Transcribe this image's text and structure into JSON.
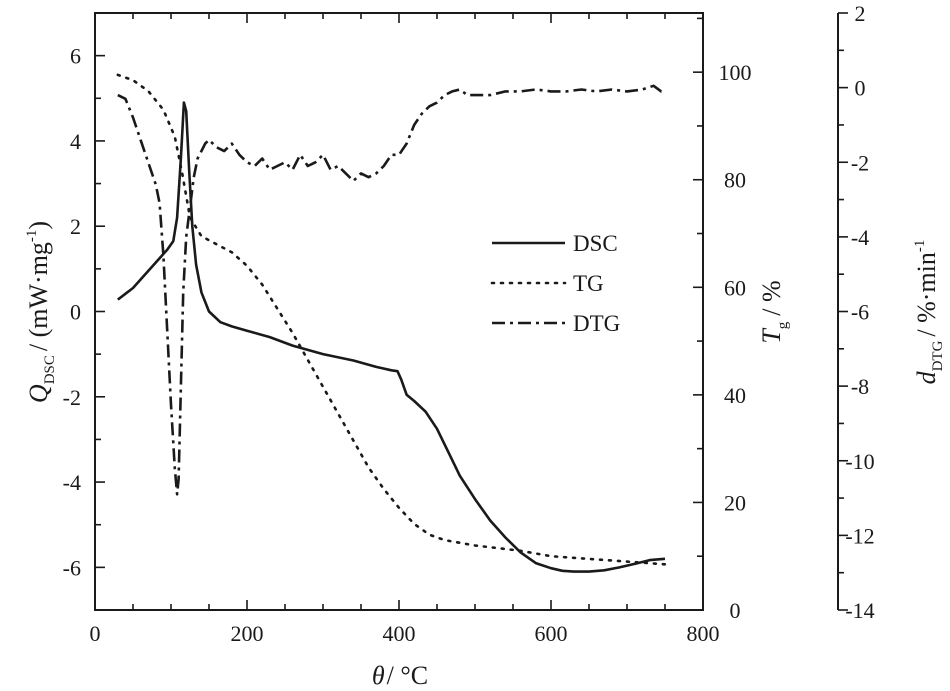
{
  "chart_data": {
    "type": "line",
    "x_axis": {
      "label": "θ",
      "unit": "/ °C",
      "range": [
        0,
        800
      ],
      "ticks": [
        0,
        200,
        400,
        600,
        800
      ]
    },
    "y_axes": {
      "left": {
        "label_main": "Q",
        "label_sub": "DSC",
        "label_unit": "/ (mW·mg",
        "label_sup": "-1",
        "label_close": ")",
        "range": [
          -7,
          7
        ],
        "ticks": [
          6,
          4,
          2,
          0,
          -2,
          -4,
          -6
        ]
      },
      "right1": {
        "label_main": "T",
        "label_sub": "g",
        "label_unit": "/ %",
        "range": [
          0,
          111
        ],
        "ticks": [
          0,
          20,
          40,
          60,
          80,
          100
        ]
      },
      "right2": {
        "label_main": "d",
        "label_sub": "DTG",
        "label_unit": "/ %·min",
        "label_sup": "-1",
        "range": [
          -14,
          2
        ],
        "ticks": [
          2,
          0,
          -2,
          -4,
          -6,
          -8,
          -10,
          -12,
          -14
        ]
      }
    },
    "legend": {
      "position": "center-right",
      "entries": [
        "DSC",
        "TG",
        "DTG"
      ]
    },
    "series": [
      {
        "name": "DSC",
        "axis": "left",
        "dash": "solid",
        "x": [
          30,
          50,
          70,
          85,
          95,
          103,
          108,
          113,
          117,
          120,
          124,
          128,
          133,
          140,
          150,
          165,
          180,
          200,
          230,
          260,
          300,
          340,
          370,
          390,
          398,
          403,
          410,
          420,
          435,
          450,
          465,
          480,
          500,
          520,
          540,
          560,
          580,
          600,
          615,
          630,
          650,
          670,
          690,
          710,
          730,
          750
        ],
        "y": [
          0.28,
          0.55,
          0.95,
          1.25,
          1.45,
          1.65,
          2.2,
          3.6,
          4.9,
          4.7,
          3.3,
          2.0,
          1.1,
          0.45,
          0.0,
          -0.25,
          -0.35,
          -0.45,
          -0.6,
          -0.8,
          -1.0,
          -1.15,
          -1.3,
          -1.38,
          -1.4,
          -1.6,
          -1.95,
          -2.1,
          -2.35,
          -2.75,
          -3.3,
          -3.85,
          -4.4,
          -4.9,
          -5.3,
          -5.65,
          -5.9,
          -6.02,
          -6.08,
          -6.1,
          -6.1,
          -6.07,
          -6.0,
          -5.92,
          -5.83,
          -5.8
        ]
      },
      {
        "name": "TG",
        "axis": "right1",
        "dash": "dotted",
        "x": [
          30,
          50,
          70,
          90,
          105,
          115,
          125,
          140,
          160,
          180,
          200,
          220,
          240,
          260,
          280,
          300,
          320,
          340,
          360,
          380,
          400,
          420,
          440,
          460,
          480,
          500,
          530,
          560,
          600,
          650,
          700,
          750
        ],
        "y": [
          99.5,
          98.5,
          96.5,
          93,
          88,
          81,
          73,
          69.5,
          68,
          66.5,
          64,
          60.5,
          56,
          51.5,
          46.5,
          41.5,
          36.5,
          31.5,
          26.5,
          22.5,
          19,
          16,
          14,
          13,
          12.5,
          12,
          11.5,
          11,
          10,
          9.5,
          9,
          8.5
        ]
      },
      {
        "name": "DTG",
        "axis": "right2",
        "dash": "dashdot",
        "x": [
          30,
          40,
          50,
          60,
          70,
          80,
          85,
          90,
          95,
          100,
          105,
          108,
          110,
          113,
          116,
          120,
          125,
          130,
          135,
          140,
          145,
          150,
          160,
          170,
          180,
          190,
          200,
          210,
          220,
          230,
          240,
          250,
          260,
          270,
          280,
          290,
          300,
          310,
          320,
          330,
          340,
          350,
          360,
          370,
          380,
          390,
          400,
          410,
          420,
          430,
          440,
          450,
          460,
          470,
          480,
          490,
          500,
          520,
          540,
          560,
          580,
          600,
          620,
          640,
          660,
          680,
          700,
          720,
          735,
          745,
          750
        ],
        "y": [
          -0.2,
          -0.3,
          -0.8,
          -1.4,
          -2.0,
          -2.6,
          -3.1,
          -4.5,
          -6.5,
          -8.5,
          -10.2,
          -10.9,
          -10.5,
          -8.0,
          -5.5,
          -4.0,
          -3.2,
          -2.4,
          -1.9,
          -1.7,
          -1.5,
          -1.4,
          -1.6,
          -1.7,
          -1.5,
          -1.8,
          -2.0,
          -2.1,
          -1.9,
          -2.2,
          -2.1,
          -2.0,
          -2.2,
          -1.8,
          -2.1,
          -2.0,
          -1.8,
          -2.2,
          -2.1,
          -2.3,
          -2.5,
          -2.3,
          -2.4,
          -2.3,
          -2.1,
          -1.8,
          -1.8,
          -1.5,
          -1.0,
          -0.7,
          -0.5,
          -0.4,
          -0.2,
          -0.1,
          -0.05,
          -0.2,
          -0.2,
          -0.2,
          -0.1,
          -0.1,
          -0.05,
          -0.1,
          -0.1,
          -0.05,
          -0.1,
          -0.05,
          -0.1,
          -0.05,
          0.05,
          -0.1,
          -0.1
        ]
      }
    ]
  }
}
